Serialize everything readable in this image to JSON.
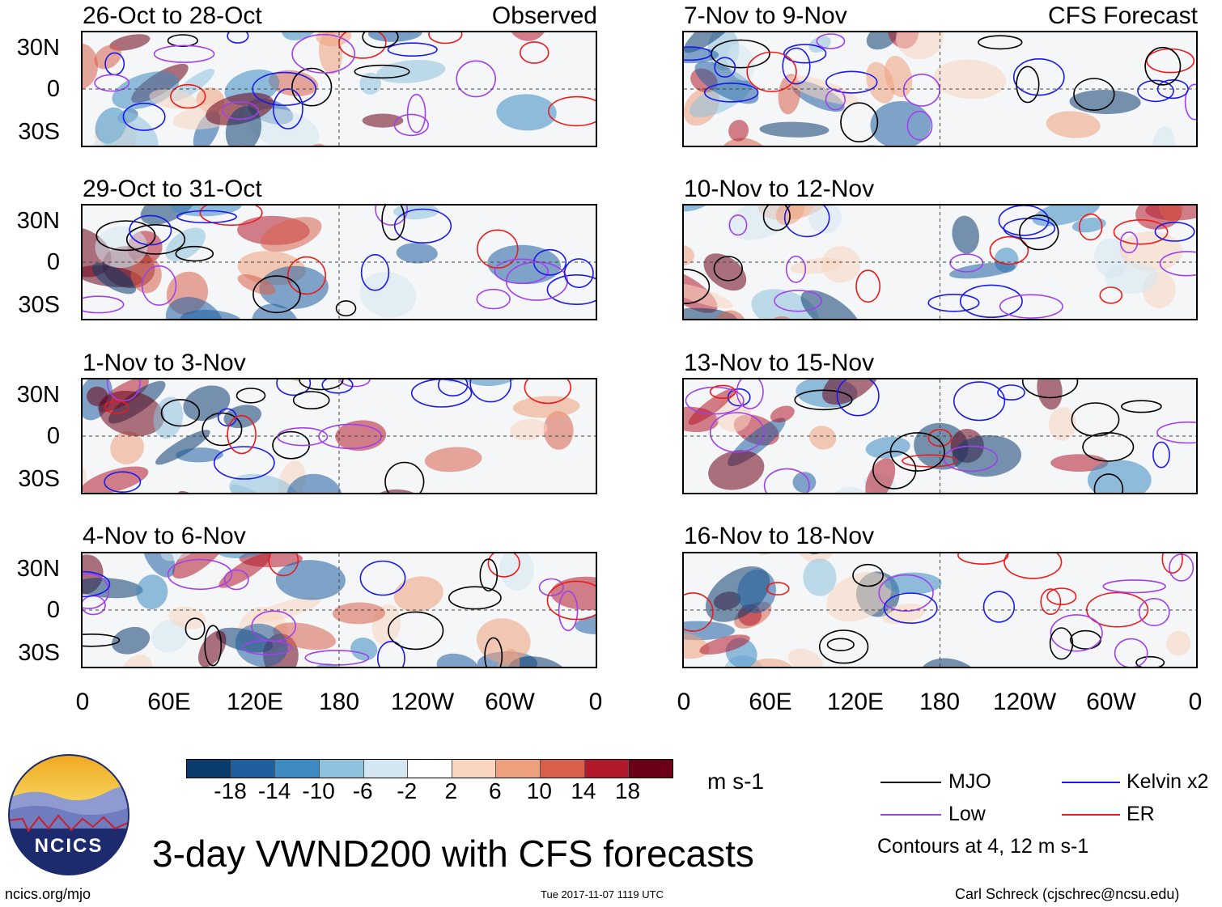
{
  "columns": [
    {
      "label": "Observed",
      "periods": [
        "26-Oct to 28-Oct",
        "29-Oct to 31-Oct",
        "1-Nov to 3-Nov",
        "4-Nov to 6-Nov"
      ]
    },
    {
      "label": "CFS Forecast",
      "periods": [
        "7-Nov to 9-Nov",
        "10-Nov to 12-Nov",
        "13-Nov to 15-Nov",
        "16-Nov to 18-Nov"
      ]
    }
  ],
  "lat_labels": [
    "30N",
    "0",
    "30S"
  ],
  "lon_labels": [
    "0",
    "60E",
    "120E",
    "180",
    "120W",
    "60W",
    "0"
  ],
  "colorbar": {
    "labels": [
      "-18",
      "-14",
      "-10",
      "-6",
      "-2",
      "2",
      "6",
      "10",
      "14",
      "18"
    ],
    "colors": [
      "#0b3c6e",
      "#1f5fa0",
      "#3d8bc2",
      "#8ec1de",
      "#d3e6f1",
      "#ffffff",
      "#fad6c0",
      "#eea07c",
      "#d8604b",
      "#b2192b",
      "#6b0016"
    ],
    "units": "m s-1"
  },
  "legend": {
    "items": [
      {
        "label": "MJO",
        "color": "#000000"
      },
      {
        "label": "Kelvin x2",
        "color": "#1a1aee"
      },
      {
        "label": "Low",
        "color": "#a040ee"
      },
      {
        "label": "ER",
        "color": "#ee1a1a"
      }
    ],
    "note": "Contours at 4, 12 m s-1"
  },
  "title": "3-day VWND200 with CFS forecasts",
  "logo_text": "NCICS",
  "footer": {
    "url": "ncics.org/mjo",
    "timestamp": "Tue 2017-11-07 1119 UTC",
    "author": "Carl Schreck (cjschrec@ncsu.edu)"
  }
}
